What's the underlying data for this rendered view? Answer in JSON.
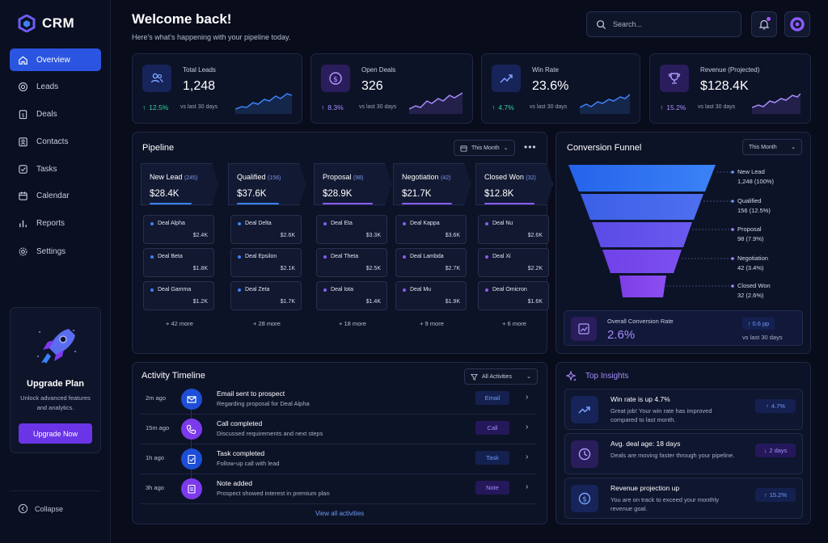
{
  "app": {
    "name": "CRM"
  },
  "sidebar": {
    "items": [
      {
        "label": "Overview"
      },
      {
        "label": "Leads"
      },
      {
        "label": "Deals"
      },
      {
        "label": "Contacts"
      },
      {
        "label": "Tasks"
      },
      {
        "label": "Calendar"
      },
      {
        "label": "Reports"
      },
      {
        "label": "Settings"
      }
    ],
    "upgrade": {
      "title": "Upgrade Plan",
      "desc": "Unlock advanced features and analytics.",
      "button": "Upgrade Now"
    },
    "collapse": "Collapse"
  },
  "header": {
    "title": "Welcome back!",
    "subtitle": "Here's what's happening with your pipeline today.",
    "search_placeholder": "Search..."
  },
  "kpis": [
    {
      "label": "Total Leads",
      "value": "1,248",
      "change": "12.5%",
      "vs": "vs last 30 days",
      "color": "#34d399"
    },
    {
      "label": "Open Deals",
      "value": "326",
      "change": "8.3%",
      "vs": "vs last 30 days",
      "color": "#a78bfa"
    },
    {
      "label": "Win Rate",
      "value": "23.6%",
      "change": "4.7%",
      "vs": "vs last 30 days",
      "color": "#34d399"
    },
    {
      "label": "Revenue (Projected)",
      "value": "$128.4K",
      "change": "15.2%",
      "vs": "vs last 30 days",
      "color": "#a78bfa"
    }
  ],
  "pipeline": {
    "title": "Pipeline",
    "filter": "This Month",
    "stages": [
      {
        "name": "New Lead",
        "count": "(245)",
        "amount": "$28.4K",
        "color": "#3b82f6",
        "deals": [
          {
            "n": "Deal Alpha",
            "v": "$2.4K"
          },
          {
            "n": "Deal Beta",
            "v": "$1.8K"
          },
          {
            "n": "Deal Gamma",
            "v": "$1.2K"
          }
        ],
        "more": "+ 42 more"
      },
      {
        "name": "Qualified",
        "count": "(156)",
        "amount": "$37.6K",
        "color": "#3b82f6",
        "deals": [
          {
            "n": "Deal Delta",
            "v": "$2.6K"
          },
          {
            "n": "Deal Epsilon",
            "v": "$2.1K"
          },
          {
            "n": "Deal Zeta",
            "v": "$1.7K"
          }
        ],
        "more": "+ 28 more"
      },
      {
        "name": "Proposal",
        "count": "(98)",
        "amount": "$28.9K",
        "color": "#8b5cf6",
        "deals": [
          {
            "n": "Deal Eta",
            "v": "$3.3K"
          },
          {
            "n": "Deal Theta",
            "v": "$2.5K"
          },
          {
            "n": "Deal Iota",
            "v": "$1.4K"
          }
        ],
        "more": "+ 18 more"
      },
      {
        "name": "Negotiation",
        "count": "(42)",
        "amount": "$21.7K",
        "color": "#8b5cf6",
        "deals": [
          {
            "n": "Deal Kappa",
            "v": "$3.6K"
          },
          {
            "n": "Deal Lambda",
            "v": "$2.7K"
          },
          {
            "n": "Deal Mu",
            "v": "$1.9K"
          }
        ],
        "more": "+ 9 more"
      },
      {
        "name": "Closed Won",
        "count": "(32)",
        "amount": "$12.8K",
        "color": "#8b5cf6",
        "deals": [
          {
            "n": "Deal Nu",
            "v": "$2.6K"
          },
          {
            "n": "Deal Xi",
            "v": "$2.2K"
          },
          {
            "n": "Deal Omicron",
            "v": "$1.6K"
          }
        ],
        "more": "+ 6 more"
      }
    ]
  },
  "funnel": {
    "title": "Conversion Funnel",
    "filter": "This Month",
    "stages": [
      {
        "name": "New Lead",
        "value": "1,248 (100%)"
      },
      {
        "name": "Qualified",
        "value": "156 (12.5%)"
      },
      {
        "name": "Proposal",
        "value": "98 (7.9%)"
      },
      {
        "name": "Negotiation",
        "value": "42 (3.4%)"
      },
      {
        "name": "Closed Won",
        "value": "32 (2.6%)"
      }
    ],
    "overall_label": "Overall Conversion Rate",
    "overall_value": "2.6%",
    "overall_change": "0.6 pp",
    "overall_vs": "vs last 30 days"
  },
  "activity": {
    "title": "Activity Timeline",
    "filter": "All Activities",
    "items": [
      {
        "ago": "2m ago",
        "title": "Email sent to prospect",
        "desc": "Regarding proposal for Deal Alpha",
        "tag": "Email"
      },
      {
        "ago": "15m ago",
        "title": "Call completed",
        "desc": "Discussed requirements and next steps",
        "tag": "Call"
      },
      {
        "ago": "1h ago",
        "title": "Task completed",
        "desc": "Follow-up call with lead",
        "tag": "Task"
      },
      {
        "ago": "3h ago",
        "title": "Note added",
        "desc": "Prospect showed interest in premium plan",
        "tag": "Note"
      }
    ],
    "view_all": "View all activities"
  },
  "insights": {
    "title": "Top Insights",
    "items": [
      {
        "title": "Win rate is up 4.7%",
        "desc": "Great job! Your win rate has improved compared to last month.",
        "badge": "4.7%"
      },
      {
        "title": "Avg. deal age: 18 days",
        "desc": "Deals are moving faster through your pipeline.",
        "badge": "2 days"
      },
      {
        "title": "Revenue projection up",
        "desc": "You are on track to exceed your monthly revenue goal.",
        "badge": "15.2%"
      }
    ]
  }
}
